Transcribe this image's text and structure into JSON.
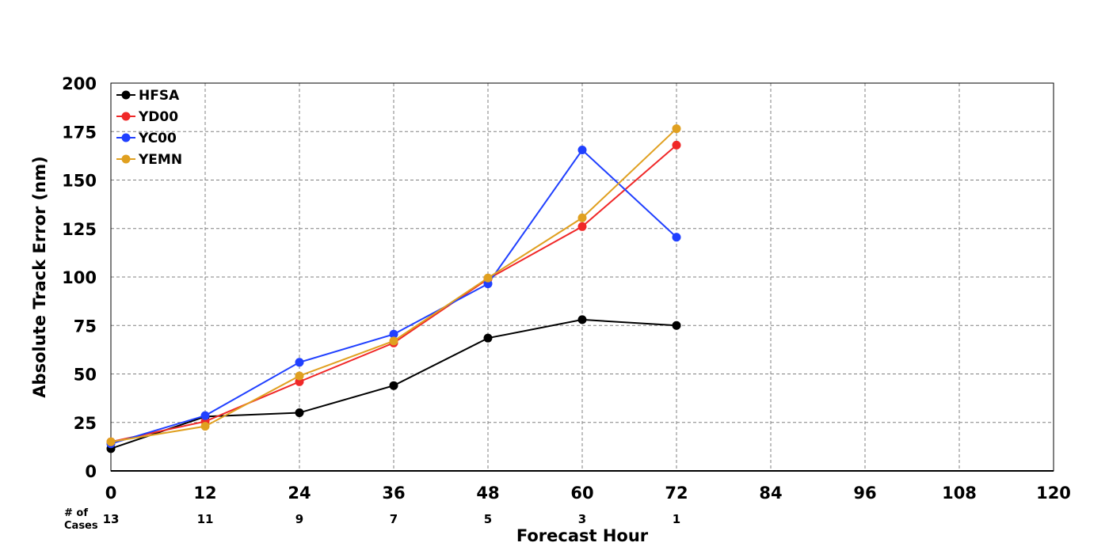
{
  "chart_data": {
    "type": "line",
    "title": "",
    "xlabel": "Forecast Hour",
    "ylabel": "Absolute Track Error (nm)",
    "xlim": [
      0,
      120
    ],
    "ylim": [
      0,
      200
    ],
    "x_ticks": [
      "0",
      "12",
      "24",
      "36",
      "48",
      "60",
      "72",
      "84",
      "96",
      "108",
      "120"
    ],
    "y_ticks": [
      "0",
      "25",
      "50",
      "75",
      "100",
      "125",
      "150",
      "175",
      "200"
    ],
    "grid": true,
    "legend_position": "top-left",
    "x": [
      0,
      12,
      24,
      36,
      48,
      60,
      72
    ],
    "series": [
      {
        "name": "HFSA",
        "color": "#000000",
        "values": [
          11.5,
          28,
          30,
          44,
          68.5,
          78,
          75
        ]
      },
      {
        "name": "YD00",
        "color": "#f02828",
        "values": [
          15,
          25.5,
          46,
          66,
          99,
          126,
          168
        ]
      },
      {
        "name": "YC00",
        "color": "#2040ff",
        "values": [
          14,
          28.5,
          56,
          70.5,
          96.5,
          165.5,
          120.5
        ]
      },
      {
        "name": "YEMN",
        "color": "#e0a020",
        "values": [
          15,
          23,
          49,
          67,
          99.5,
          130.5,
          176.5
        ]
      }
    ],
    "cases_header": [
      "# of",
      "Cases"
    ],
    "cases": [
      "13",
      "11",
      "9",
      "7",
      "5",
      "3",
      "1"
    ]
  }
}
